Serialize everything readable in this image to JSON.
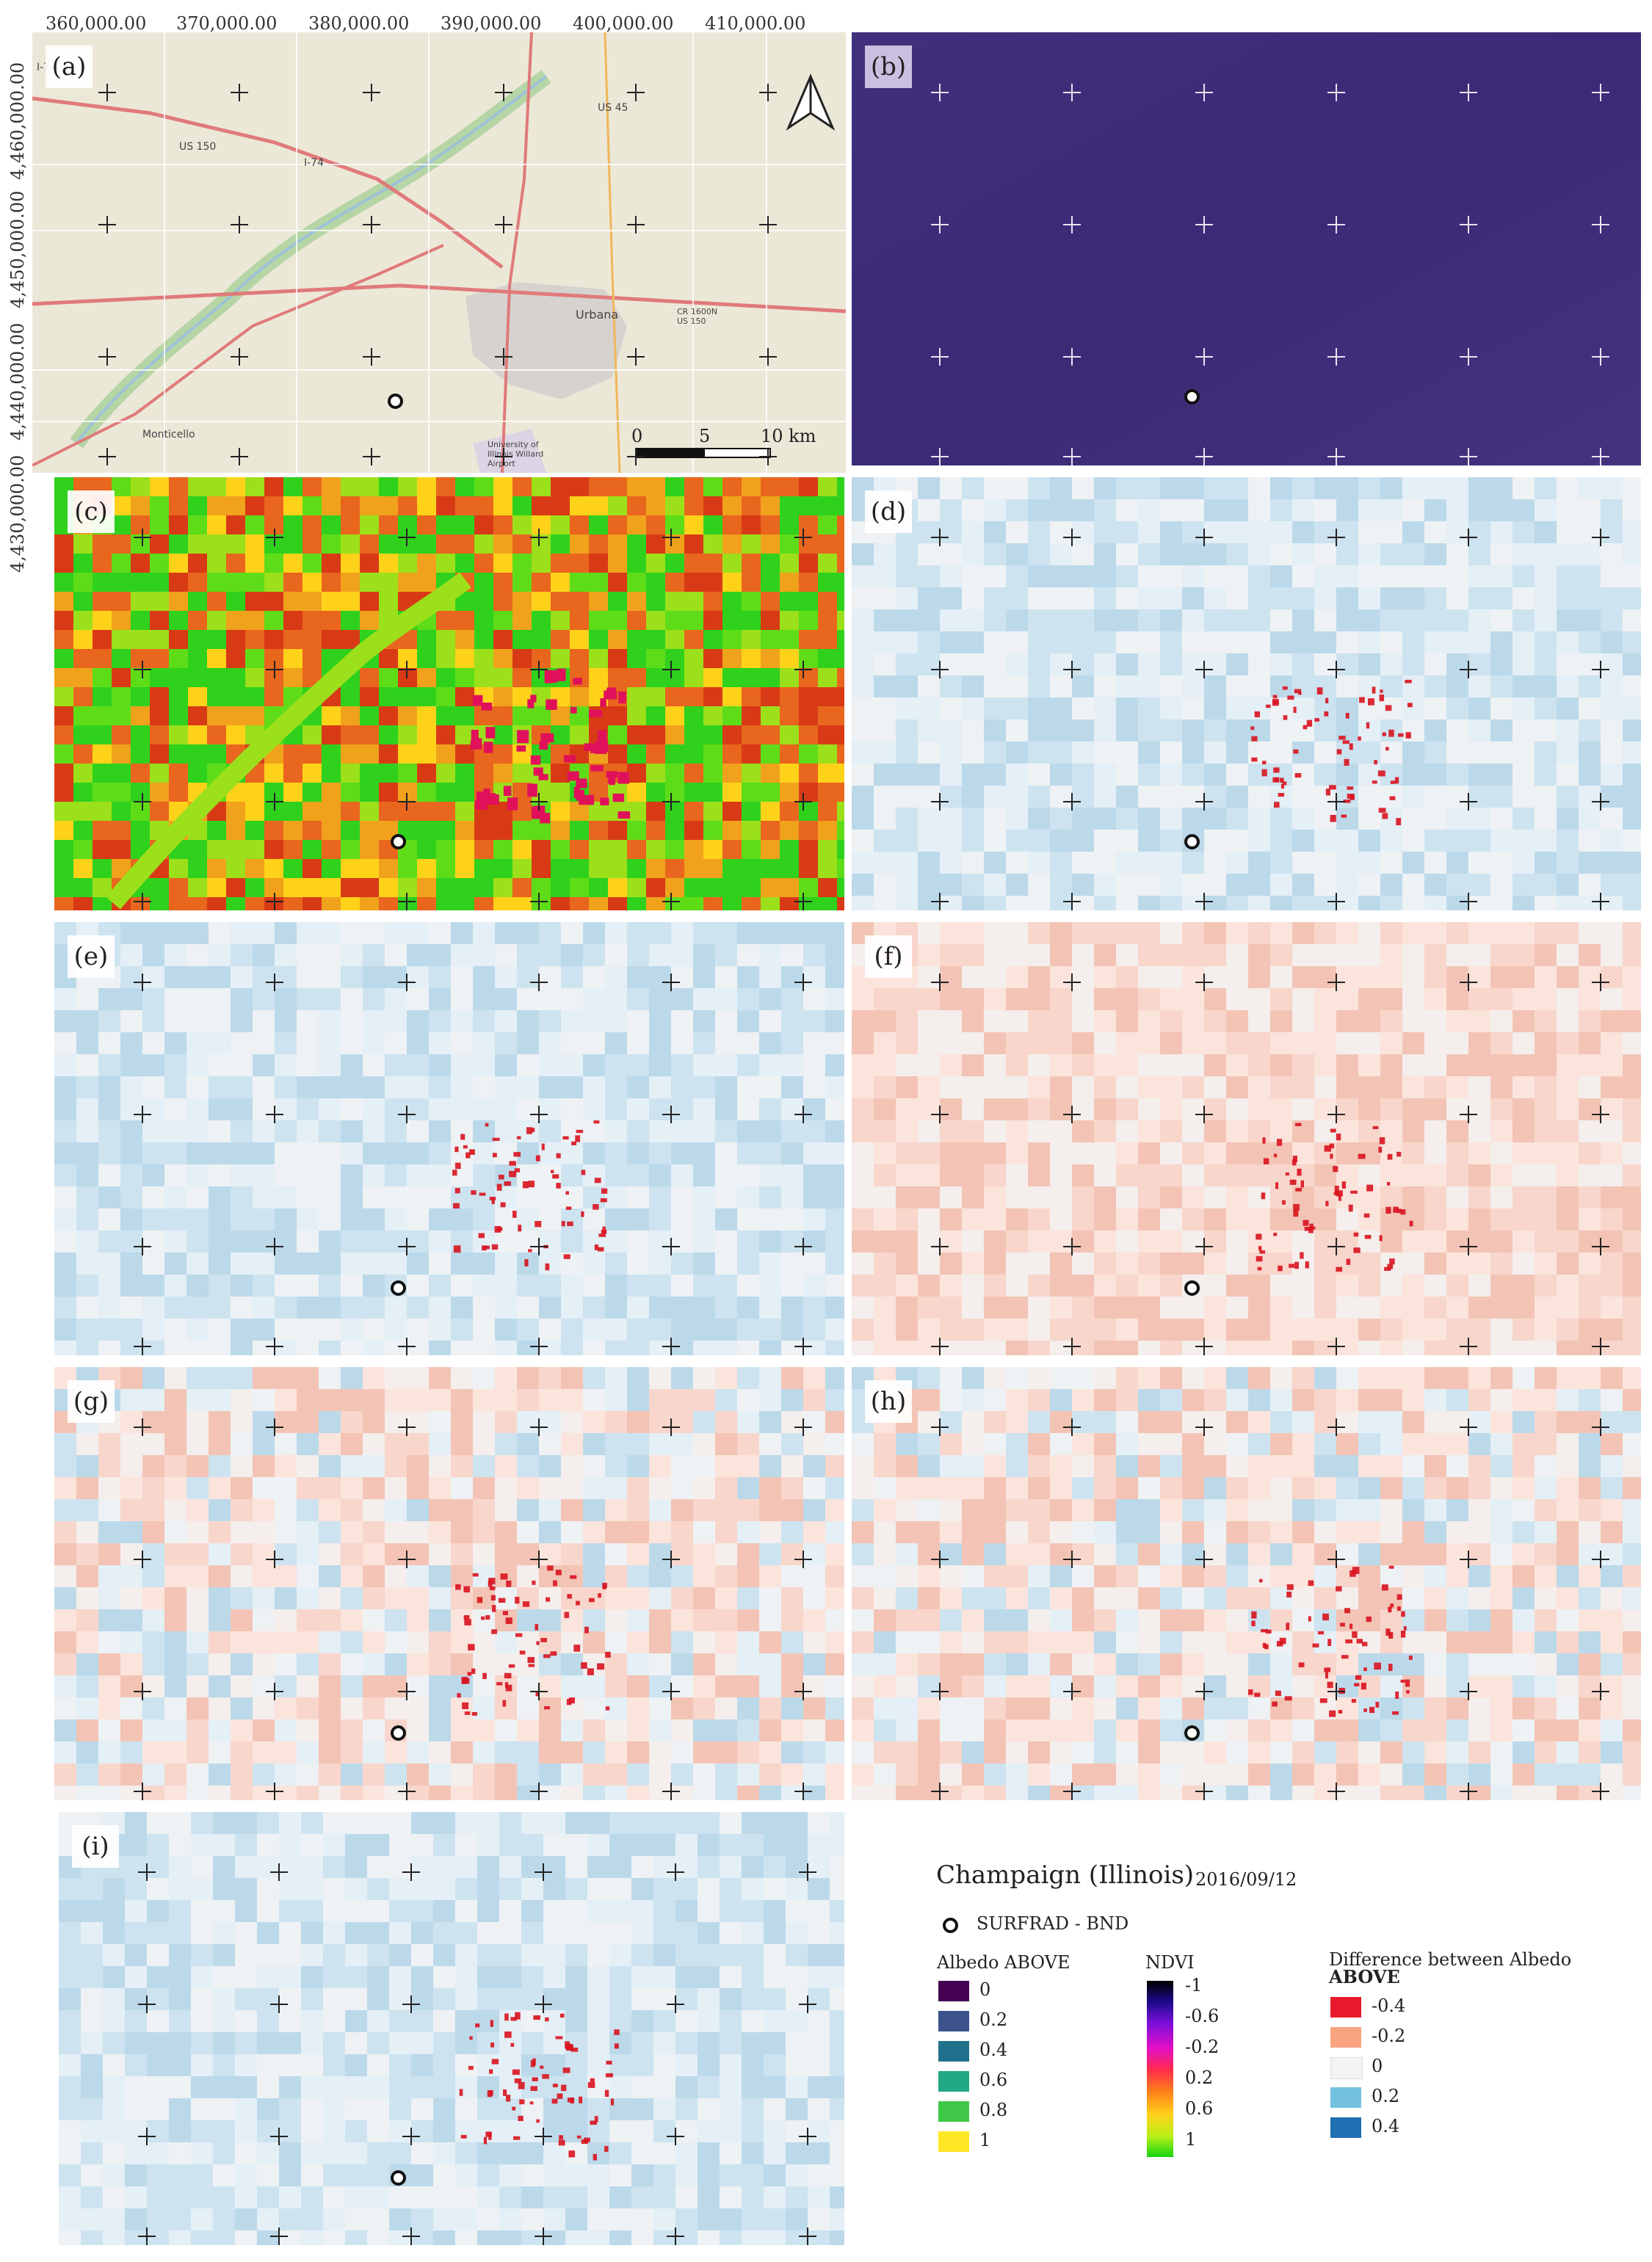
{
  "axes": {
    "x_ticks": [
      "360,000.00",
      "370,000.00",
      "380,000.00",
      "390,000.00",
      "400,000.00",
      "410,000.00"
    ],
    "y_ticks": [
      "4,460,000.00",
      "4,450,000.00",
      "4,440,000.00",
      "4,430,000.00"
    ]
  },
  "panels": {
    "a": "(a)",
    "b": "(b)",
    "c": "(c)",
    "d": "(d)",
    "e": "(e)",
    "f": "(f)",
    "g": "(g)",
    "h": "(h)",
    "i": "(i)"
  },
  "map_labels": {
    "urbana": "Urbana",
    "monticello": "Monticello",
    "airport": "University of Illinois Willard Airport",
    "road_us150": "US 150",
    "road_i74": "I-74",
    "road_us45": "US 45",
    "road_cr1600n": "CR 1600N US 150",
    "road_top": "I-74"
  },
  "scale_bar": {
    "zero": "0",
    "five": "5",
    "ten": "10 km"
  },
  "legend": {
    "title": "Champaign (Illinois)",
    "date": "2016/09/12",
    "site": "SURFRAD - BND",
    "albedo": {
      "heading": "Albedo ABOVE",
      "entries": [
        {
          "label": "0",
          "color": "#440154"
        },
        {
          "label": "0.2",
          "color": "#3b528b"
        },
        {
          "label": "0.4",
          "color": "#21718c"
        },
        {
          "label": "0.6",
          "color": "#22a884"
        },
        {
          "label": "0.8",
          "color": "#3fc747"
        },
        {
          "label": "1",
          "color": "#fde725"
        }
      ]
    },
    "ndvi": {
      "heading": "NDVI",
      "ticks": [
        "-1",
        "-0.6",
        "-0.2",
        "0.2",
        "0.6",
        "1"
      ]
    },
    "diff": {
      "heading_line1": "Difference between Albedo",
      "heading_line2": "ABOVE",
      "entries": [
        {
          "label": "-0.4",
          "color": "#e8192c"
        },
        {
          "label": "-0.2",
          "color": "#f9a381"
        },
        {
          "label": "0",
          "color": "#f4f4f4"
        },
        {
          "label": "0.2",
          "color": "#74c2de"
        },
        {
          "label": "0.4",
          "color": "#1f6fb2"
        }
      ]
    }
  },
  "colors": {
    "map_bg": "#ece8d8",
    "albedo_panel": "#3d2c7a",
    "ndvi_green": "#2fd11d",
    "ndvi_orange": "#e8661d",
    "diff_blue": "#cfe3ef",
    "diff_red": "#f7d3c8"
  }
}
